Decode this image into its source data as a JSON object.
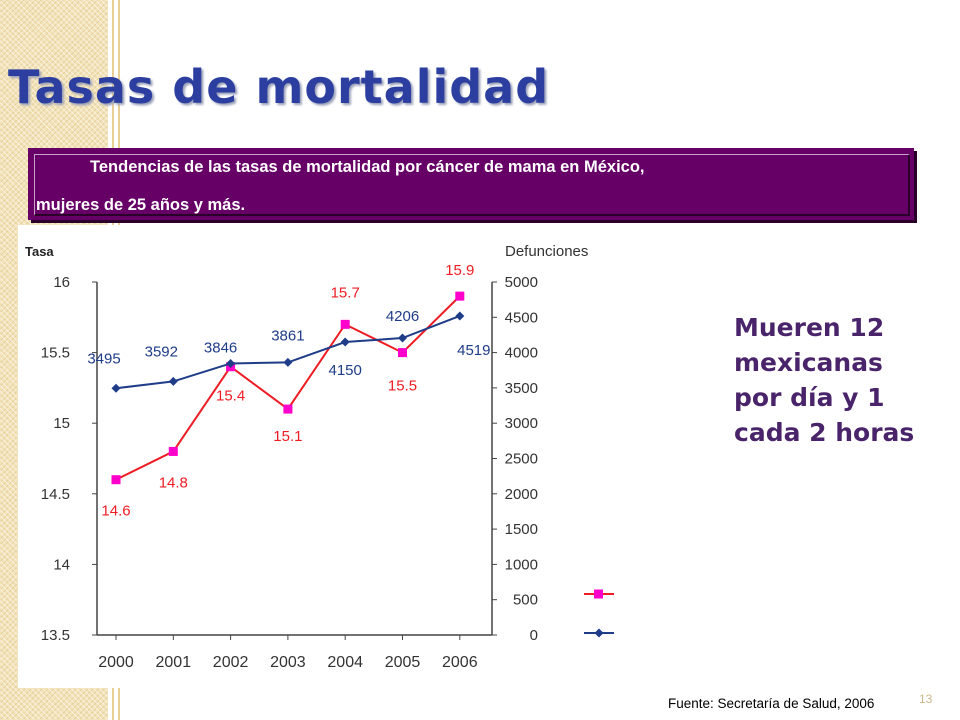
{
  "slide": {
    "title": "Tasas de mortalidad",
    "banner_line1": "Tendencias de las tasas de mortalidad por cáncer de mama en México,",
    "banner_line2": "mujeres de  25 años y más.",
    "callout_lines": [
      "Mueren 12",
      "mexicanas",
      "por día y 1",
      "cada 2 horas"
    ],
    "source": "Fuente: Secretaría de Salud, 2006",
    "page_number": "13"
  },
  "chart_data": {
    "type": "line",
    "categories": [
      "2000",
      "2001",
      "2002",
      "2003",
      "2004",
      "2005",
      "2006"
    ],
    "left_axis": {
      "label": "Tasa",
      "range": [
        13.5,
        16
      ],
      "ticks": [
        "16",
        "15.5",
        "15",
        "14.5",
        "14",
        "13.5"
      ]
    },
    "right_axis": {
      "label": "Defunciones",
      "range": [
        0,
        5000
      ],
      "ticks": [
        "5000",
        "4500",
        "4000",
        "3500",
        "3000",
        "2500",
        "2000",
        "1500",
        "1000",
        "500",
        "0"
      ]
    },
    "series": [
      {
        "axis": "left",
        "color": "#ee1c24",
        "marker_color": "#ff00cc",
        "marker": "square",
        "values": [
          14.6,
          14.8,
          15.4,
          15.1,
          15.7,
          15.5,
          15.9
        ],
        "labels": [
          "14.6",
          "14.8",
          "15.4",
          "15.1",
          "15.7",
          "15.5",
          "15.9"
        ]
      },
      {
        "axis": "right",
        "color": "#1f3c88",
        "marker_color": "#1f3c88",
        "marker": "diamond",
        "values": [
          3495,
          3592,
          3846,
          3861,
          4150,
          4206,
          4519
        ],
        "labels": [
          "3495",
          "3592",
          "3846",
          "3861",
          "4150",
          "4206",
          "4519"
        ]
      }
    ],
    "legend_placement": "bottom-right",
    "grid": false
  }
}
